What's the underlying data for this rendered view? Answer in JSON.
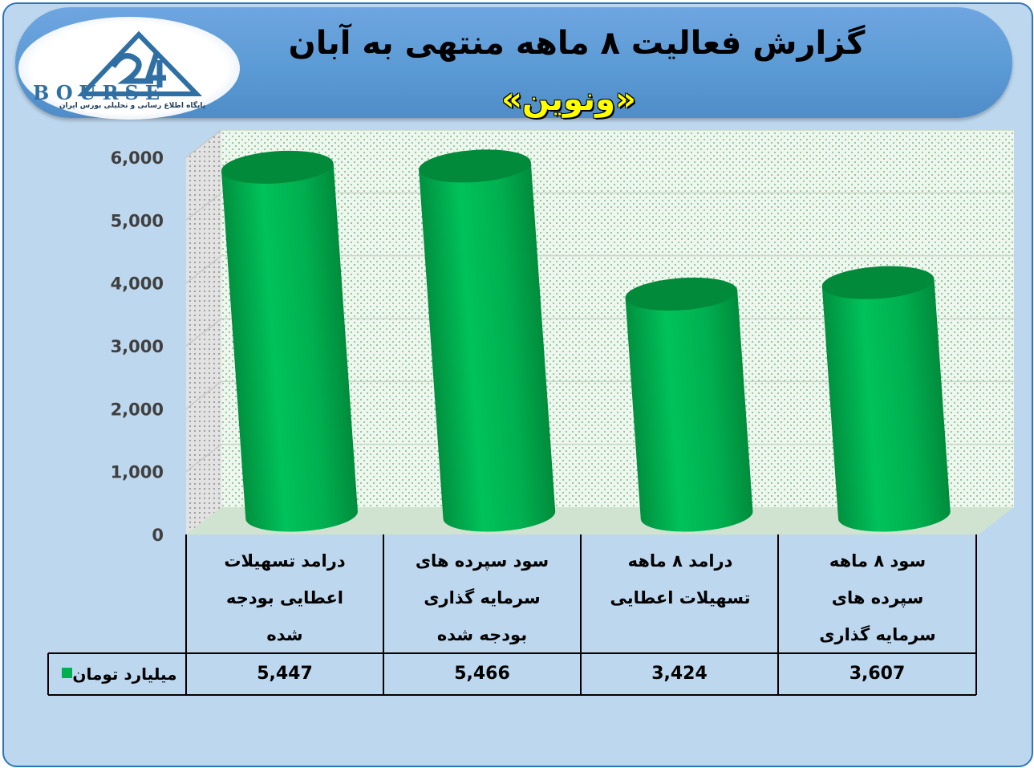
{
  "header": {
    "title": "گزارش فعالیت ۸ ماهه منتهی به آبان",
    "subtitle": "«ونوین»"
  },
  "logo": {
    "name": "BOURSE",
    "tagline": "پایگاه اطلاع رسانی و تحلیلی بورس ایران"
  },
  "chart_data": {
    "type": "bar",
    "style": "3d-cylinder",
    "title": "گزارش فعالیت ۸ ماهه منتهی به آبان",
    "subtitle": "«ونوین»",
    "categories": [
      "درامد تسهیلات اعطایی بودجه شده",
      "سود سپرده های سرمایه گذاری بودجه شده",
      "درامد ۸ ماهه تسهیلات اعطایی",
      "سود ۸ ماهه سپرده های سرمایه گذاری"
    ],
    "series": [
      {
        "name": "میلیارد تومان",
        "values": [
          5447,
          5466,
          3424,
          3607
        ],
        "color": "#00b050"
      }
    ],
    "value_labels": [
      "5,447",
      "5,466",
      "3,424",
      "3,607"
    ],
    "yticks": [
      "0",
      "1,000",
      "2,000",
      "3,000",
      "4,000",
      "5,000",
      "6,000"
    ],
    "ylim": [
      0,
      6000
    ],
    "grid": true,
    "legend": "data-table",
    "xlabel": "",
    "ylabel": ""
  },
  "colors": {
    "frame_bg": "#bdd7ee",
    "frame_border": "#2e75b6",
    "banner": "#5b9bd5",
    "subtitle_text": "#ffff00",
    "bar": "#00b050",
    "wall": "#e6f2e6"
  }
}
